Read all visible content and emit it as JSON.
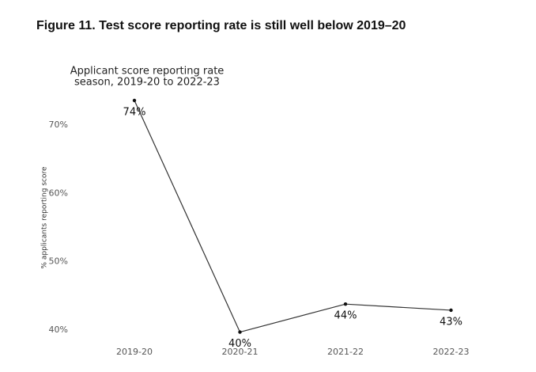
{
  "chart_data": {
    "type": "line",
    "title": "Figure 11. Test score reporting rate is still well below 2019–20",
    "subtitle": [
      "Applicant score reporting rate",
      "season, 2019-20 to 2022-23"
    ],
    "y_label": "% applicants reporting score",
    "categories": [
      "2019-20",
      "2020-21",
      "2021-22",
      "2022-23"
    ],
    "values": [
      73.6,
      39.7,
      43.8,
      42.9
    ],
    "value_labels": [
      "74%",
      "40%",
      "44%",
      "43%"
    ],
    "color": "#333333",
    "ylim": [
      39.5,
      75.5
    ],
    "yticks": [
      {
        "value": 40,
        "label": "40%"
      },
      {
        "value": 50,
        "label": "50%"
      },
      {
        "value": 60,
        "label": "60%"
      },
      {
        "value": 70,
        "label": "70%"
      }
    ],
    "grid": false
  }
}
